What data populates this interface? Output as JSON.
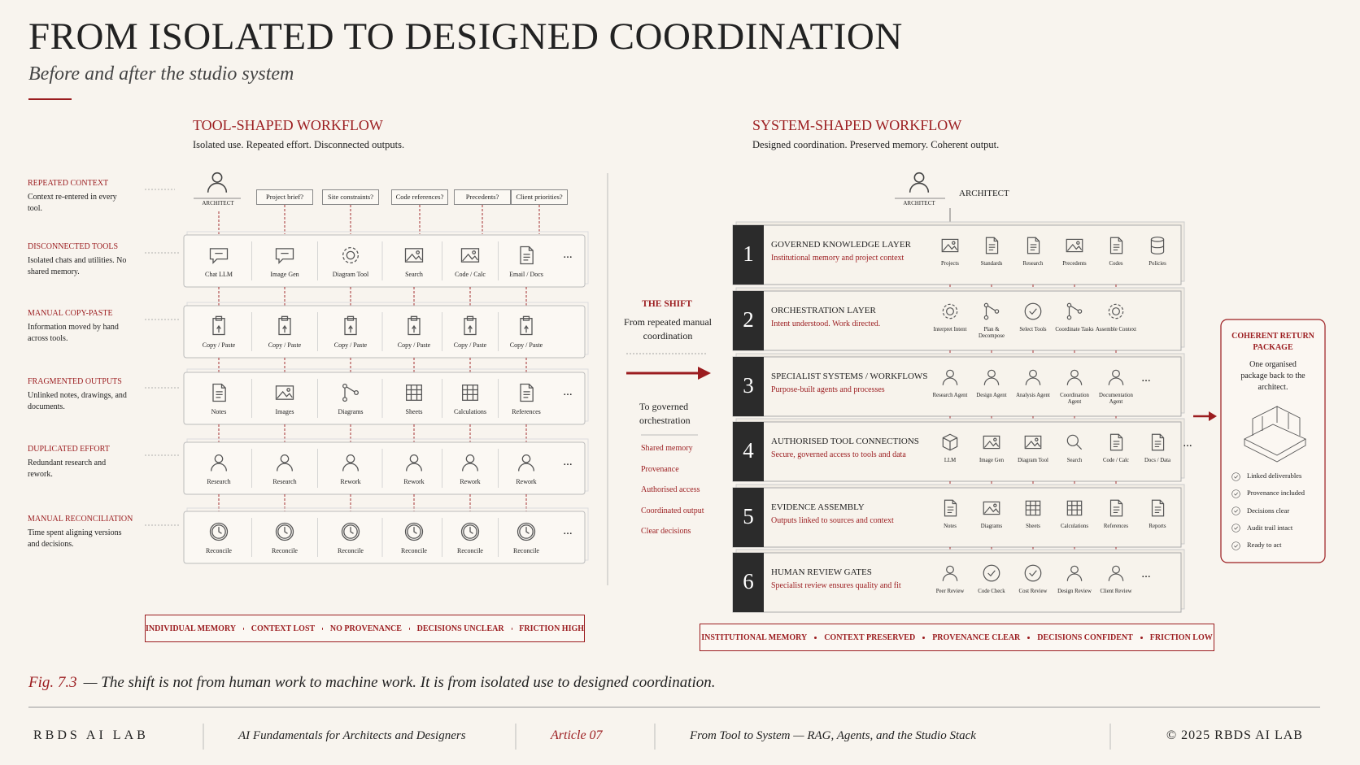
{
  "header": {
    "title": "FROM ISOLATED TO DESIGNED COORDINATION",
    "subtitle": "Before and after the studio system"
  },
  "tool_workflow": {
    "title": "TOOL-SHAPED WORKFLOW",
    "subtitle": "Isolated use. Repeated effort. Disconnected outputs.",
    "architect": "ARCHITECT",
    "questions": [
      "Project brief?",
      "Site constraints?",
      "Code references?",
      "Precedents?",
      "Client priorities?"
    ],
    "rows": [
      {
        "label": "REPEATED CONTEXT",
        "description": "Context re-entered in every tool."
      },
      {
        "label": "DISCONNECTED TOOLS",
        "description": "Isolated chats and utilities. No shared memory.",
        "items": [
          "Chat LLM",
          "Image Gen",
          "Diagram Tool",
          "Search",
          "Code / Calc",
          "Email / Docs"
        ],
        "more": "..."
      },
      {
        "label": "MANUAL COPY-PASTE",
        "description": "Information moved by hand across tools.",
        "items": [
          "Copy / Paste",
          "Copy / Paste",
          "Copy / Paste",
          "Copy / Paste",
          "Copy / Paste",
          "Copy / Paste"
        ]
      },
      {
        "label": "FRAGMENTED OUTPUTS",
        "description": "Unlinked notes, drawings, and documents.",
        "items": [
          "Notes",
          "Images",
          "Diagrams",
          "Sheets",
          "Calculations",
          "References"
        ],
        "more": "..."
      },
      {
        "label": "DUPLICATED EFFORT",
        "description": "Redundant research and rework.",
        "items": [
          "Research",
          "Research",
          "Rework",
          "Rework",
          "Rework",
          "Rework"
        ],
        "more": "..."
      },
      {
        "label": "MANUAL RECONCILIATION",
        "description": "Time spent aligning versions and decisions.",
        "items": [
          "Reconcile",
          "Reconcile",
          "Reconcile",
          "Reconcile",
          "Reconcile",
          "Reconcile"
        ],
        "more": "..."
      }
    ],
    "footer": [
      "INDIVIDUAL MEMORY",
      "CONTEXT LOST",
      "NO PROVENANCE",
      "DECISIONS UNCLEAR",
      "FRICTION HIGH"
    ]
  },
  "shift": {
    "label": "THE SHIFT",
    "from": "From repeated manual coordination",
    "to": "To governed orchestration",
    "benefits": [
      "Shared memory",
      "Provenance",
      "Authorised access",
      "Coordinated output",
      "Clear decisions"
    ]
  },
  "system_workflow": {
    "title": "SYSTEM-SHAPED WORKFLOW",
    "subtitle": "Designed coordination. Preserved memory. Coherent output.",
    "architect_icon": "ARCHITECT",
    "architect": "ARCHITECT",
    "layers": [
      {
        "number": "1",
        "title": "GOVERNED KNOWLEDGE LAYER",
        "description": "Institutional memory and project context",
        "items": [
          "Projects",
          "Standards",
          "Research",
          "Precedents",
          "Codes",
          "Policies"
        ]
      },
      {
        "number": "2",
        "title": "ORCHESTRATION LAYER",
        "description": "Intent understood. Work directed.",
        "items": [
          "Interpret Intent",
          "Plan & Decompose",
          "Select Tools",
          "Coordinate Tasks",
          "Assemble Context"
        ]
      },
      {
        "number": "3",
        "title": "SPECIALIST SYSTEMS / WORKFLOWS",
        "description": "Purpose-built agents and processes",
        "items": [
          "Research Agent",
          "Design Agent",
          "Analysis Agent",
          "Coordination Agent",
          "Documentation Agent"
        ],
        "more": "..."
      },
      {
        "number": "4",
        "title": "AUTHORISED TOOL CONNECTIONS",
        "description": "Secure, governed access to tools and data",
        "items": [
          "LLM",
          "Image Gen",
          "Diagram Tool",
          "Search",
          "Code / Calc",
          "Docs / Data"
        ],
        "more": "..."
      },
      {
        "number": "5",
        "title": "EVIDENCE ASSEMBLY",
        "description": "Outputs linked to sources and context",
        "items": [
          "Notes",
          "Diagrams",
          "Sheets",
          "Calculations",
          "References",
          "Reports"
        ]
      },
      {
        "number": "6",
        "title": "HUMAN REVIEW GATES",
        "description": "Specialist review ensures quality and fit",
        "items": [
          "Peer Review",
          "Code Check",
          "Cost Review",
          "Design Review",
          "Client Review"
        ],
        "more": "..."
      }
    ],
    "footer": [
      "INSTITUTIONAL MEMORY",
      "CONTEXT PRESERVED",
      "PROVENANCE CLEAR",
      "DECISIONS CONFIDENT",
      "FRICTION LOW"
    ]
  },
  "return_package": {
    "title": "COHERENT RETURN PACKAGE",
    "description": "One organised package back to the architect.",
    "checks": [
      "Linked deliverables",
      "Provenance included",
      "Decisions clear",
      "Audit trail intact",
      "Ready to act"
    ]
  },
  "caption": {
    "label": "Fig. 7.3",
    "text": "— The shift is not from human work to machine work. It is from isolated use to designed coordination."
  },
  "footer": {
    "brand": "RBDS AI LAB",
    "course": "AI Fundamentals for Architects and Designers",
    "article": "Article 07",
    "topic": "From Tool to System — RAG, Agents, and the Studio Stack",
    "copyright": "© 2025 RBDS AI LAB"
  }
}
